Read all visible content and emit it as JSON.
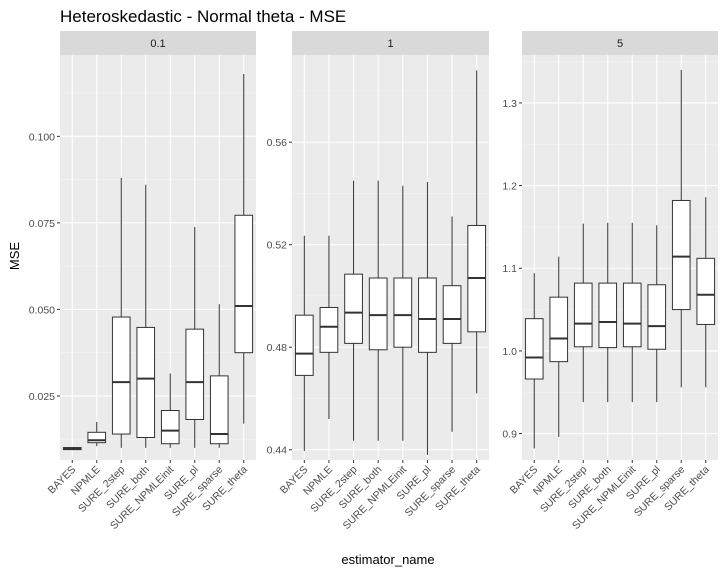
{
  "chart_data": {
    "type": "boxplot",
    "title": "Heteroskedastic - Normal theta - MSE",
    "xlabel": "estimator_name",
    "ylabel": "MSE",
    "facet_by": "facet",
    "categories": [
      "BAYES",
      "NPMLE",
      "SURE_2step",
      "SURE_both",
      "SURE_NPMLEinit",
      "SURE_pl",
      "SURE_sparse",
      "SURE_theta"
    ],
    "colors": {
      "panel_bg": "#ebebeb",
      "strip_bg": "#d9d9d9",
      "grid_major": "#ffffff",
      "grid_minor": "#f4f4f4",
      "box_fill": "#ffffff",
      "box_line": "#333333"
    },
    "panels": [
      {
        "label": "0.1",
        "ylim": [
          0.0065,
          0.1235
        ],
        "yticks": [
          0.025,
          0.05,
          0.075,
          0.1
        ],
        "ytick_labels": [
          "0.025",
          "0.050",
          "0.075",
          "0.100"
        ],
        "boxes": [
          {
            "name": "BAYES",
            "min": 0.0095,
            "q1": 0.0095,
            "median": 0.0098,
            "q3": 0.0101,
            "max": 0.0101
          },
          {
            "name": "NPMLE",
            "min": 0.0105,
            "q1": 0.0115,
            "median": 0.0122,
            "q3": 0.0145,
            "max": 0.0175
          },
          {
            "name": "SURE_2step",
            "min": 0.01,
            "q1": 0.014,
            "median": 0.029,
            "q3": 0.0478,
            "max": 0.088
          },
          {
            "name": "SURE_both",
            "min": 0.01,
            "q1": 0.013,
            "median": 0.03,
            "q3": 0.0448,
            "max": 0.086
          },
          {
            "name": "SURE_NPMLEinit",
            "min": 0.01,
            "q1": 0.0112,
            "median": 0.015,
            "q3": 0.0208,
            "max": 0.0315
          },
          {
            "name": "SURE_pl",
            "min": 0.01,
            "q1": 0.0182,
            "median": 0.029,
            "q3": 0.0443,
            "max": 0.0738
          },
          {
            "name": "SURE_sparse",
            "min": 0.01,
            "q1": 0.0112,
            "median": 0.014,
            "q3": 0.0308,
            "max": 0.0515
          },
          {
            "name": "SURE_theta",
            "min": 0.017,
            "q1": 0.0375,
            "median": 0.051,
            "q3": 0.0772,
            "max": 0.118
          }
        ]
      },
      {
        "label": "1",
        "ylim": [
          0.436,
          0.594
        ],
        "yticks": [
          0.44,
          0.48,
          0.52,
          0.56
        ],
        "ytick_labels": [
          "0.44",
          "0.48",
          "0.52",
          "0.56"
        ],
        "boxes": [
          {
            "name": "BAYES",
            "min": 0.4395,
            "q1": 0.469,
            "median": 0.4775,
            "q3": 0.4925,
            "max": 0.5235
          },
          {
            "name": "NPMLE",
            "min": 0.452,
            "q1": 0.478,
            "median": 0.488,
            "q3": 0.4955,
            "max": 0.5235
          },
          {
            "name": "SURE_2step",
            "min": 0.4435,
            "q1": 0.4815,
            "median": 0.4935,
            "q3": 0.5085,
            "max": 0.545
          },
          {
            "name": "SURE_both",
            "min": 0.4435,
            "q1": 0.479,
            "median": 0.4925,
            "q3": 0.507,
            "max": 0.545
          },
          {
            "name": "SURE_NPMLEinit",
            "min": 0.4435,
            "q1": 0.48,
            "median": 0.4925,
            "q3": 0.507,
            "max": 0.543
          },
          {
            "name": "SURE_pl",
            "min": 0.438,
            "q1": 0.478,
            "median": 0.491,
            "q3": 0.507,
            "max": 0.5445
          },
          {
            "name": "SURE_sparse",
            "min": 0.447,
            "q1": 0.4815,
            "median": 0.491,
            "q3": 0.504,
            "max": 0.531
          },
          {
            "name": "SURE_theta",
            "min": 0.462,
            "q1": 0.486,
            "median": 0.507,
            "q3": 0.5275,
            "max": 0.588
          }
        ]
      },
      {
        "label": "5",
        "ylim": [
          0.868,
          1.358
        ],
        "yticks": [
          0.9,
          1.0,
          1.1,
          1.2,
          1.3
        ],
        "ytick_labels": [
          "0.9",
          "1.0",
          "1.1",
          "1.2",
          "1.3"
        ],
        "boxes": [
          {
            "name": "BAYES",
            "min": 0.882,
            "q1": 0.966,
            "median": 0.992,
            "q3": 1.039,
            "max": 1.094
          },
          {
            "name": "NPMLE",
            "min": 0.896,
            "q1": 0.987,
            "median": 1.015,
            "q3": 1.065,
            "max": 1.114
          },
          {
            "name": "SURE_2step",
            "min": 0.938,
            "q1": 1.005,
            "median": 1.033,
            "q3": 1.082,
            "max": 1.154
          },
          {
            "name": "SURE_both",
            "min": 0.938,
            "q1": 1.004,
            "median": 1.035,
            "q3": 1.082,
            "max": 1.155
          },
          {
            "name": "SURE_NPMLEinit",
            "min": 0.938,
            "q1": 1.005,
            "median": 1.033,
            "q3": 1.082,
            "max": 1.155
          },
          {
            "name": "SURE_pl",
            "min": 0.938,
            "q1": 1.002,
            "median": 1.03,
            "q3": 1.08,
            "max": 1.152
          },
          {
            "name": "SURE_sparse",
            "min": 0.956,
            "q1": 1.05,
            "median": 1.114,
            "q3": 1.182,
            "max": 1.34
          },
          {
            "name": "SURE_theta",
            "min": 0.956,
            "q1": 1.032,
            "median": 1.068,
            "q3": 1.112,
            "max": 1.186
          }
        ]
      }
    ]
  }
}
